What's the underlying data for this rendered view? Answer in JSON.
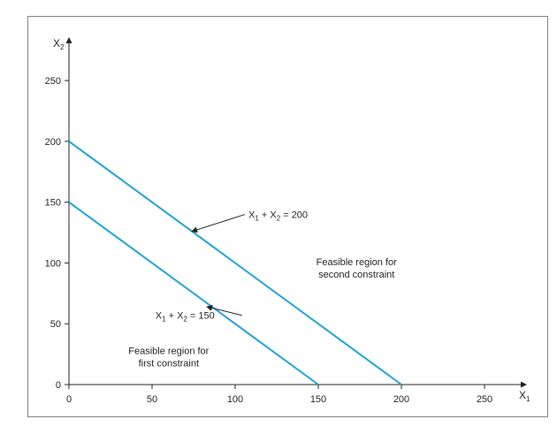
{
  "chart_data": {
    "type": "line",
    "title": "",
    "xlabel": {
      "base": "X",
      "sub": "1"
    },
    "ylabel": {
      "base": "X",
      "sub": "2"
    },
    "xlim": [
      0,
      275
    ],
    "ylim": [
      0,
      285
    ],
    "x_ticks": [
      0,
      50,
      100,
      150,
      200,
      250
    ],
    "y_ticks": [
      0,
      50,
      100,
      150,
      200,
      250
    ],
    "grid": false,
    "line_color": "#1aa3d9",
    "series": [
      {
        "points": [
          [
            0,
            150
          ],
          [
            150,
            0
          ]
        ],
        "label_parts": [
          "X",
          "1",
          " + X",
          "2",
          " = 150"
        ]
      },
      {
        "points": [
          [
            0,
            200
          ],
          [
            200,
            0
          ]
        ],
        "label_parts": [
          "X",
          "1",
          " + X",
          "2",
          " = 200"
        ]
      }
    ],
    "annotations": [
      {
        "lines": [
          "Feasible region for",
          "first constraint"
        ],
        "anchor": [
          60,
          25
        ]
      },
      {
        "lines": [
          "Feasible region for",
          "second constraint"
        ],
        "anchor": [
          173,
          98
        ]
      }
    ],
    "label_anchors": [
      {
        "text_at": [
          52,
          54
        ],
        "arrow_to": [
          83,
          64
        ]
      },
      {
        "text_at": [
          108,
          137
        ],
        "arrow_to": [
          74,
          126
        ]
      }
    ]
  }
}
